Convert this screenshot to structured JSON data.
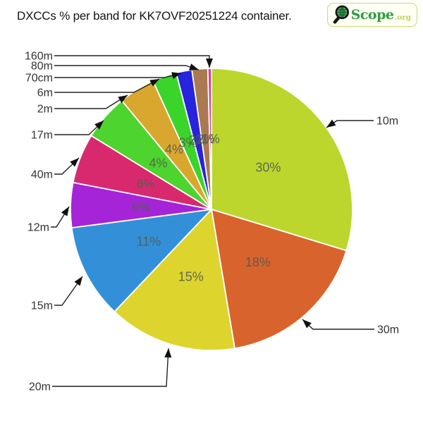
{
  "title": "DXCCs % per band for KK7OVF20251224 container.",
  "logo": {
    "brand": "Scope",
    "tld": ".org",
    "icon": "magnifier-globe-icon",
    "brand_color": "#2f9e41",
    "tld_color": "#bdd45f",
    "border_color": "#ccd874",
    "background": "#fffff4"
  },
  "chart_data": {
    "type": "pie",
    "title": "DXCCs % per band for KK7OVF20251224 container.",
    "value_unit": "% of DXCCs",
    "start_angle_deg": 0,
    "direction": "clockwise",
    "legend_position": "outer labels with leader arrows",
    "slices": [
      {
        "band": "10m",
        "percent": 30,
        "label": "30%",
        "color": "#bcd62e",
        "arc_deg": 107.0
      },
      {
        "band": "30m",
        "percent": 18,
        "label": "18%",
        "color": "#d9632c",
        "arc_deg": 63.5
      },
      {
        "band": "20m",
        "percent": 15,
        "label": "15%",
        "color": "#ddd42e",
        "arc_deg": 53.0
      },
      {
        "band": "15m",
        "percent": 11,
        "label": "11%",
        "color": "#3390d8",
        "arc_deg": 39.0
      },
      {
        "band": "12m",
        "percent": 6,
        "label": "6%",
        "color": "#a524d8",
        "arc_deg": 18.5
      },
      {
        "band": "40m",
        "percent": 6,
        "label": "6%",
        "color": "#d9296e",
        "arc_deg": 20.5
      },
      {
        "band": "17m",
        "percent": 4,
        "label": "4%",
        "color": "#4dd42e",
        "arc_deg": 19.0
      },
      {
        "band": "2m",
        "percent": 4,
        "label": "4%",
        "color": "#d9a72e",
        "arc_deg": 15.0
      },
      {
        "band": "6m",
        "percent": 3,
        "label": "3%",
        "color": "#3bd42a",
        "arc_deg": 10.0
      },
      {
        "band": "70cm",
        "percent": 2,
        "label": "2%",
        "color": "#2823dc",
        "arc_deg": 6.5
      },
      {
        "band": "80m",
        "percent": 2,
        "label": "2%",
        "color": "#ab7951",
        "arc_deg": 6.5
      },
      {
        "band": "160m",
        "percent": 1,
        "label": "1%",
        "color": "#e63490",
        "arc_deg": 1.5
      }
    ]
  }
}
